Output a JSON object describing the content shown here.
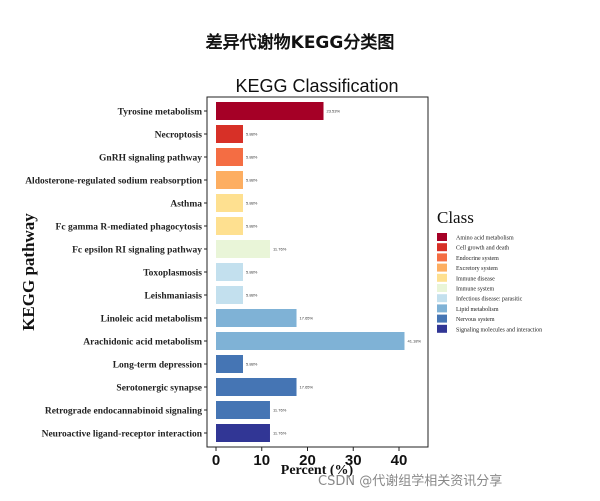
{
  "page_title": "差异代谢物KEGG分类图",
  "footer_credit": "CSDN @代谢组学相关资讯分享",
  "chart_data": {
    "type": "bar",
    "orientation": "horizontal",
    "title": "KEGG Classification",
    "xlabel": "Percent (%)",
    "ylabel": "KEGG pathway",
    "xlim": [
      0,
      42
    ],
    "xticks": [
      0,
      10,
      20,
      30,
      40
    ],
    "grid": false,
    "legend_title": "Class",
    "legend_position": "right",
    "categories": [
      "Tyrosine metabolism",
      "Necroptosis",
      "GnRH signaling pathway",
      "Aldosterone-regulated sodium reabsorption",
      "Asthma",
      "Fc gamma R-mediated phagocytosis",
      "Fc epsilon RI signaling pathway",
      "Toxoplasmosis",
      "Leishmaniasis",
      "Linoleic acid metabolism",
      "Arachidonic acid metabolism",
      "Long-term depression",
      "Serotonergic synapse",
      "Retrograde endocannabinoid signaling",
      "Neuroactive ligand-receptor interaction"
    ],
    "values": [
      23.5,
      5.9,
      5.9,
      5.9,
      5.9,
      5.9,
      11.8,
      5.9,
      5.9,
      17.6,
      41.2,
      5.9,
      17.6,
      11.8,
      11.8
    ],
    "data_labels": [
      "23.53%",
      "5.88%",
      "5.88%",
      "5.88%",
      "5.88%",
      "5.88%",
      "11.76%",
      "5.88%",
      "5.88%",
      "17.65%",
      "41.18%",
      "5.88%",
      "17.65%",
      "11.76%",
      "11.76%"
    ],
    "bar_classes": [
      0,
      1,
      2,
      3,
      4,
      4,
      5,
      6,
      6,
      7,
      7,
      8,
      8,
      8,
      9
    ],
    "classes": [
      {
        "name": "Amino acid metabolism",
        "color": "#a50026"
      },
      {
        "name": "Cell growth and death",
        "color": "#d73027"
      },
      {
        "name": "Endocrine system",
        "color": "#f46d43"
      },
      {
        "name": "Excretory system",
        "color": "#fdae61"
      },
      {
        "name": "Immune disease",
        "color": "#fee090"
      },
      {
        "name": "Immune system",
        "color": "#e9f5d8"
      },
      {
        "name": "Infectious disease: parasitic",
        "color": "#c3e0ee"
      },
      {
        "name": "Lipid metabolism",
        "color": "#7fb2d6"
      },
      {
        "name": "Nervous system",
        "color": "#4575b4"
      },
      {
        "name": "Signaling molecules and interaction",
        "color": "#313695"
      }
    ]
  }
}
